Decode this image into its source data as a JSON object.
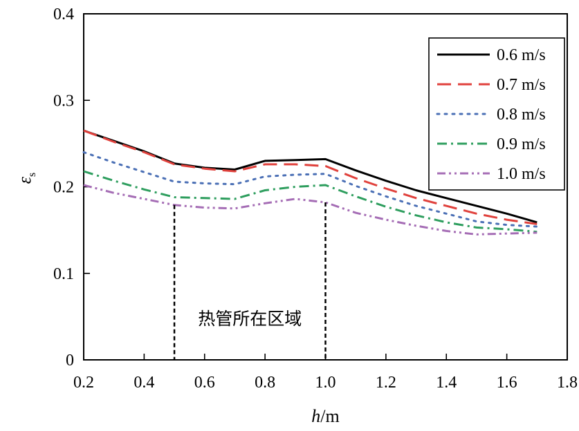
{
  "chart_data": {
    "type": "line",
    "xlabel": "h/m",
    "xlabel_italic": "h",
    "xlabel_unit": "/m",
    "ylabel": "εs",
    "ylabel_main": "ε",
    "ylabel_sub": "s",
    "xlim": [
      0.2,
      1.8
    ],
    "ylim": [
      0,
      0.4
    ],
    "xticks": [
      "0.2",
      "0.4",
      "0.6",
      "0.8",
      "1.0",
      "1.2",
      "1.4",
      "1.6",
      "1.8"
    ],
    "yticks": [
      "0",
      "0.1",
      "0.2",
      "0.3",
      "0.4"
    ],
    "grid": false,
    "legend_position": "top-right",
    "x": [
      0.2,
      0.3,
      0.4,
      0.5,
      0.6,
      0.7,
      0.8,
      0.9,
      1.0,
      1.1,
      1.2,
      1.3,
      1.4,
      1.5,
      1.6,
      1.7
    ],
    "series": [
      {
        "name": "0.6 m/s",
        "color": "#000000",
        "dash": "solid",
        "values": [
          0.265,
          0.253,
          0.241,
          0.227,
          0.222,
          0.22,
          0.23,
          0.231,
          0.232,
          0.219,
          0.207,
          0.196,
          0.187,
          0.178,
          0.169,
          0.159
        ]
      },
      {
        "name": "0.7 m/s",
        "color": "#e0413c",
        "dash": "dash",
        "values": [
          0.265,
          0.252,
          0.24,
          0.226,
          0.221,
          0.218,
          0.226,
          0.226,
          0.224,
          0.21,
          0.198,
          0.187,
          0.178,
          0.169,
          0.162,
          0.157
        ]
      },
      {
        "name": "0.8 m/s",
        "color": "#4a6fb5",
        "dash": "dot",
        "values": [
          0.24,
          0.228,
          0.217,
          0.206,
          0.204,
          0.203,
          0.212,
          0.214,
          0.215,
          0.201,
          0.189,
          0.178,
          0.169,
          0.16,
          0.156,
          0.154
        ]
      },
      {
        "name": "0.9 m/s",
        "color": "#2e9e5e",
        "dash": "dashdot",
        "values": [
          0.218,
          0.207,
          0.197,
          0.188,
          0.187,
          0.186,
          0.196,
          0.2,
          0.202,
          0.189,
          0.177,
          0.167,
          0.159,
          0.153,
          0.151,
          0.148
        ]
      },
      {
        "name": "1.0 m/s",
        "color": "#a56db5",
        "dash": "dashdotdot",
        "values": [
          0.202,
          0.193,
          0.186,
          0.179,
          0.176,
          0.175,
          0.181,
          0.186,
          0.182,
          0.17,
          0.162,
          0.155,
          0.149,
          0.145,
          0.146,
          0.147
        ]
      }
    ],
    "annotation": {
      "text": "热管所在区域",
      "x_start": 0.5,
      "x_end": 1.0
    }
  }
}
